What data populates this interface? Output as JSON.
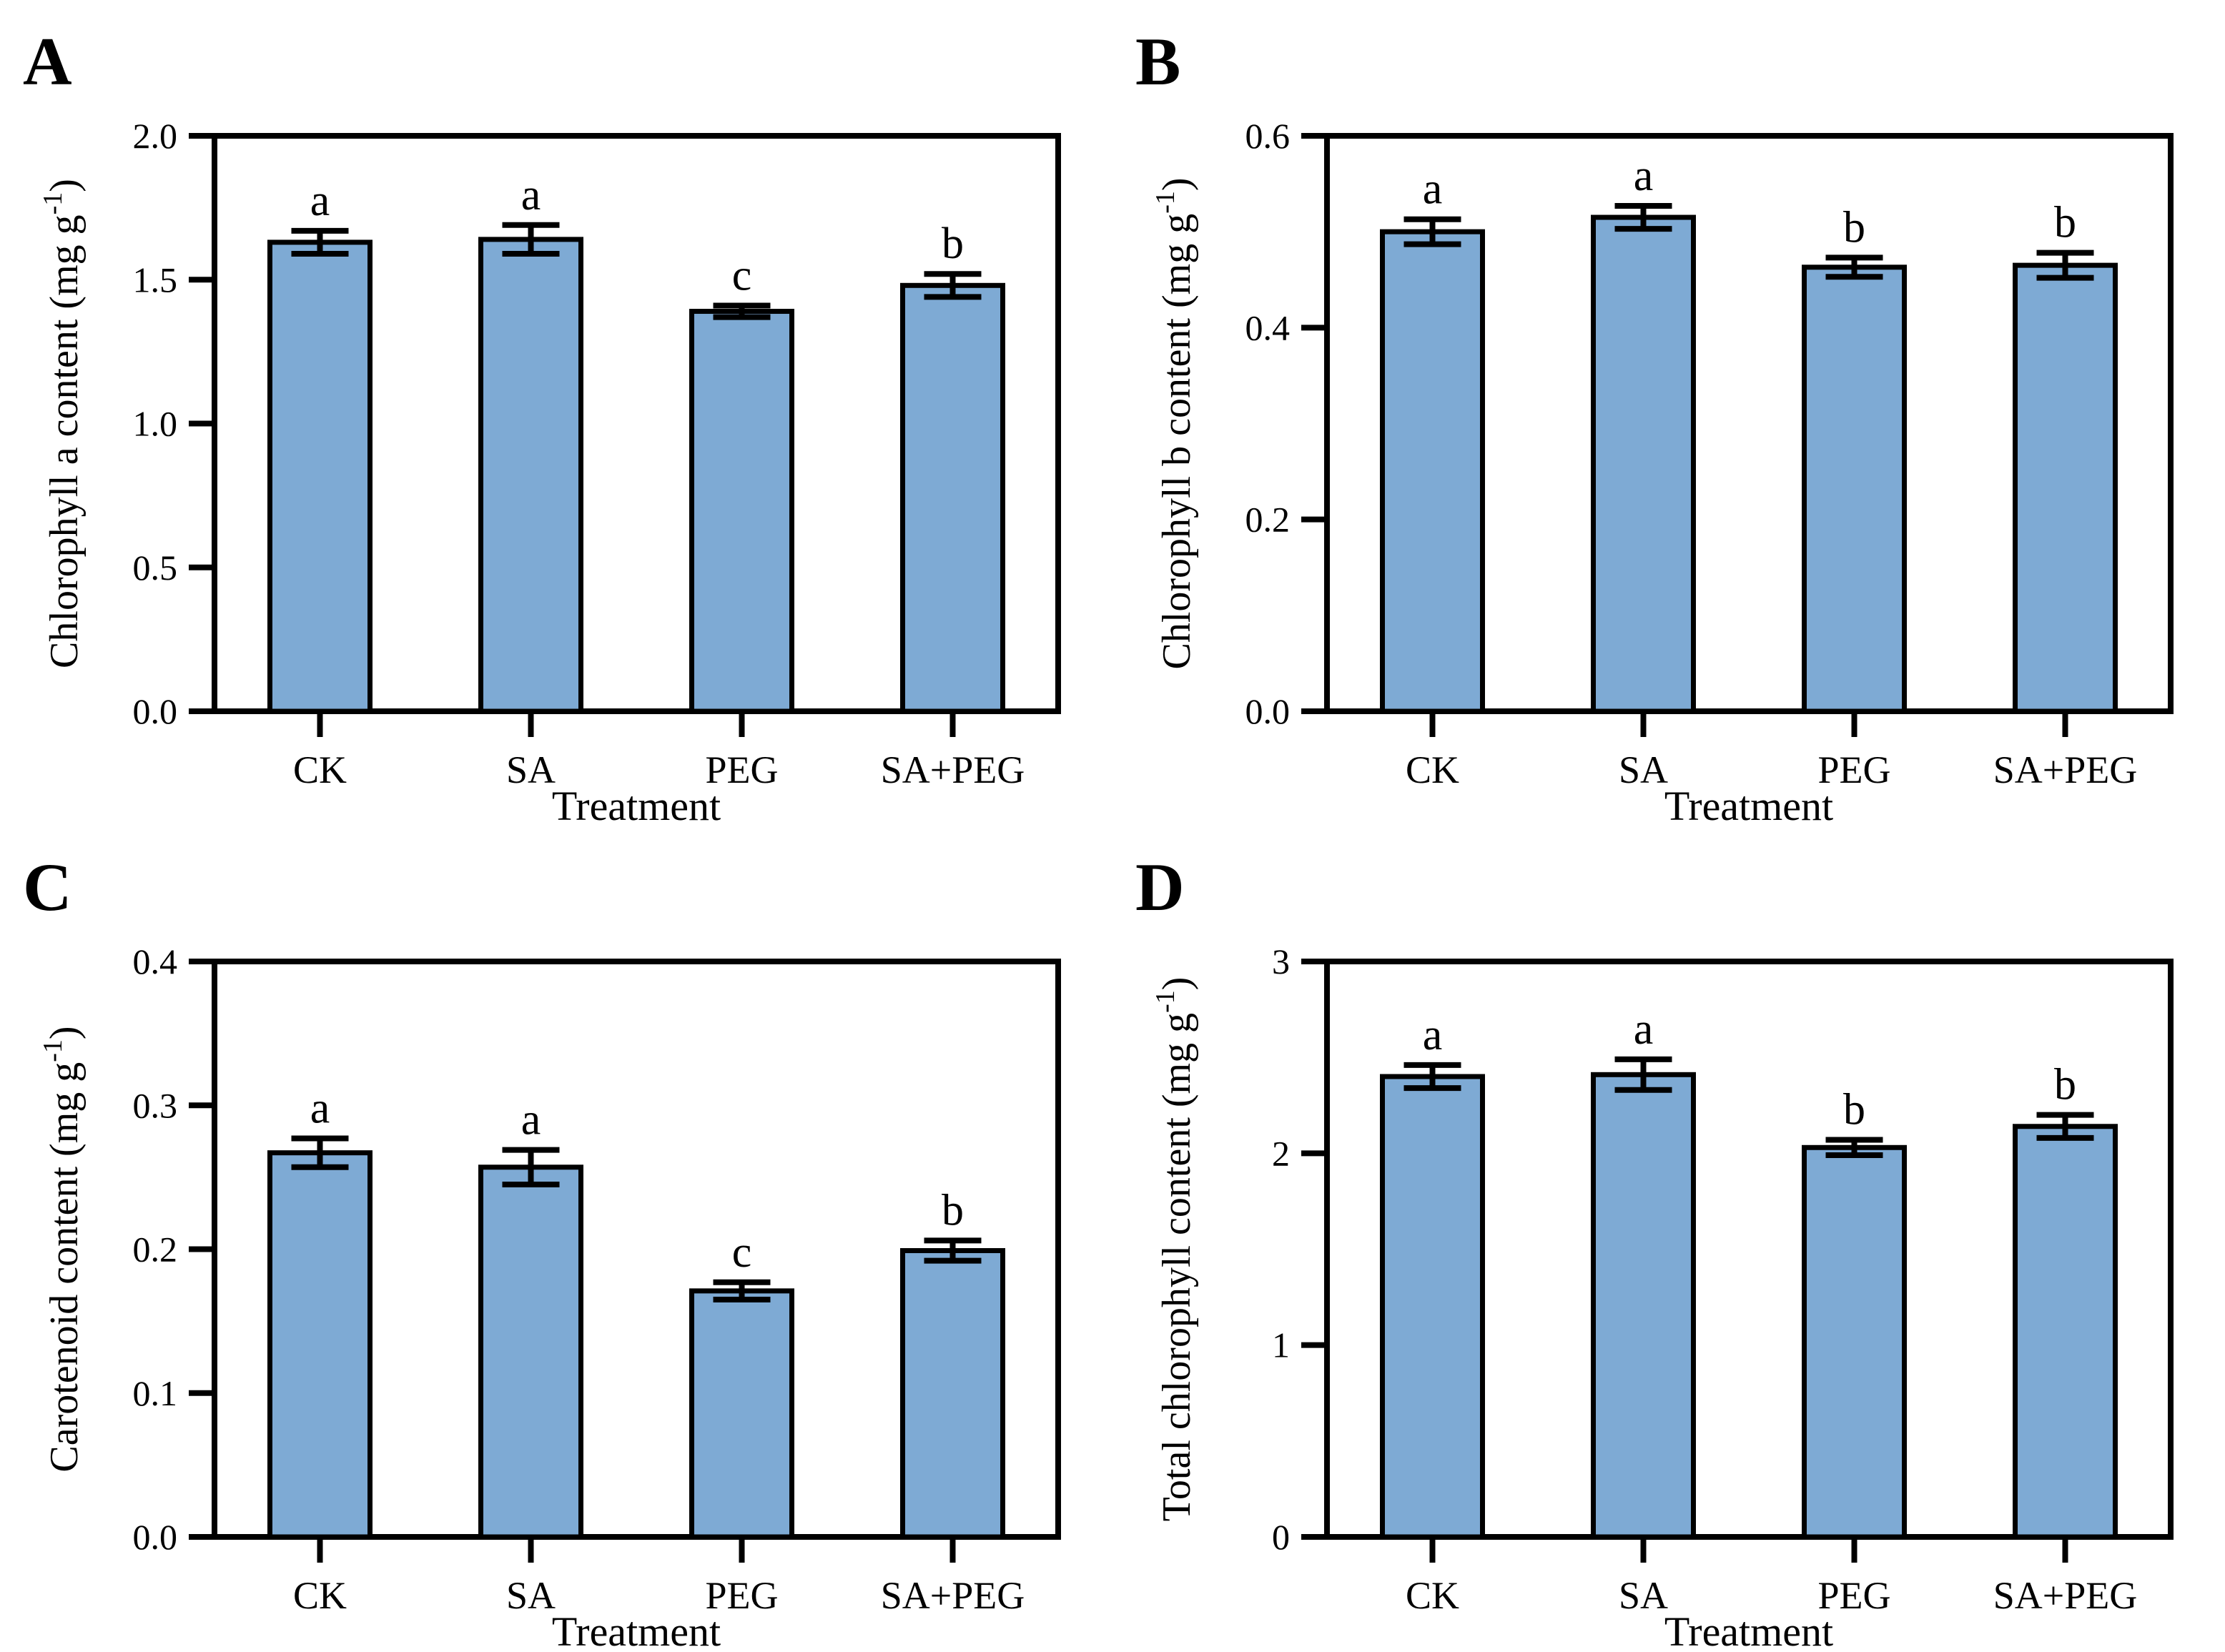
{
  "figure": {
    "background": "#FFFFFF",
    "bar_fill": "#7EAAD4",
    "bar_border": "#000000",
    "axis_color": "#000000",
    "text_color": "#000000"
  },
  "chart_data": [
    {
      "type": "bar",
      "panel_letter": "A",
      "title": "",
      "ylabel": "Chlorophyll a content (mg g⁻¹)",
      "xlabel": "Treatment",
      "categories": [
        "CK",
        "SA",
        "PEG",
        "SA+PEG"
      ],
      "values": [
        1.63,
        1.64,
        1.39,
        1.48
      ],
      "errors": [
        0.04,
        0.05,
        0.02,
        0.04
      ],
      "sig_letters": [
        "a",
        "a",
        "c",
        "b"
      ],
      "ylim": [
        0,
        2.0
      ],
      "yticks": [
        "0.0",
        "0.5",
        "1.0",
        "1.5",
        "2.0"
      ],
      "grid": false,
      "legend": "none"
    },
    {
      "type": "bar",
      "panel_letter": "B",
      "title": "",
      "ylabel": "Chlorophyll b content (mg g⁻¹)",
      "xlabel": "Treatment",
      "categories": [
        "CK",
        "SA",
        "PEG",
        "SA+PEG"
      ],
      "values": [
        0.5,
        0.515,
        0.463,
        0.465
      ],
      "errors": [
        0.013,
        0.012,
        0.01,
        0.013
      ],
      "sig_letters": [
        "a",
        "a",
        "b",
        "b"
      ],
      "ylim": [
        0,
        0.6
      ],
      "yticks": [
        "0.0",
        "0.2",
        "0.4",
        "0.6"
      ],
      "grid": false,
      "legend": "none"
    },
    {
      "type": "bar",
      "panel_letter": "C",
      "title": "",
      "ylabel": "Carotenoid content (mg g⁻¹)",
      "xlabel": "Treatment",
      "categories": [
        "CK",
        "SA",
        "PEG",
        "SA+PEG"
      ],
      "values": [
        0.267,
        0.257,
        0.171,
        0.199
      ],
      "errors": [
        0.01,
        0.012,
        0.006,
        0.007
      ],
      "sig_letters": [
        "a",
        "a",
        "c",
        "b"
      ],
      "ylim": [
        0,
        0.4
      ],
      "yticks": [
        "0.0",
        "0.1",
        "0.2",
        "0.3",
        "0.4"
      ],
      "grid": false,
      "legend": "none"
    },
    {
      "type": "bar",
      "panel_letter": "D",
      "title": "",
      "ylabel": "Total chlorophyll content (mg g⁻¹)",
      "xlabel": "Treatment",
      "categories": [
        "CK",
        "SA",
        "PEG",
        "SA+PEG"
      ],
      "values": [
        2.4,
        2.41,
        2.03,
        2.14
      ],
      "errors": [
        0.06,
        0.08,
        0.04,
        0.06
      ],
      "sig_letters": [
        "a",
        "a",
        "b",
        "b"
      ],
      "ylim": [
        0,
        3
      ],
      "yticks": [
        "0",
        "1",
        "2",
        "3"
      ],
      "grid": false,
      "legend": "none"
    }
  ]
}
